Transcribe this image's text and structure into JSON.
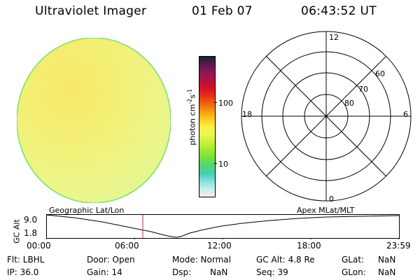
{
  "header": {
    "instrument": "Ultraviolet Imager",
    "date": "01 Feb 07",
    "time": "06:43:52 UT"
  },
  "colorbar": {
    "label": "photon cm",
    "label_sup1": "-2",
    "label_mid": "s",
    "label_sup2": "-1",
    "ticks": [
      "100",
      "10"
    ],
    "colors": [
      "#202030",
      "#5a1a4a",
      "#8a1a5a",
      "#b01040",
      "#d4102a",
      "#e83018",
      "#f06010",
      "#f89810",
      "#fcc820",
      "#fcf040",
      "#e8f850",
      "#c8f040",
      "#a0e830",
      "#78e040",
      "#50d870",
      "#40d0b0",
      "#80e0e0",
      "#c8ecec",
      "#f0f0f0"
    ]
  },
  "polar_plot": {
    "mlt_labels": [
      "12",
      "18",
      "6",
      "0"
    ],
    "lat_labels": [
      "60",
      "70",
      "80"
    ]
  },
  "timeline": {
    "left_label": "Geographic Lat/Lon",
    "right_label": "Apex  MLat/MLT",
    "axis_title": "GC Alt",
    "y_ticks": [
      "9.0",
      "1.8"
    ],
    "x_ticks": [
      "00:00",
      "06:00",
      "12:00",
      "18:00",
      "23:59"
    ]
  },
  "status": {
    "row1": [
      {
        "key": "flt",
        "text": "Flt: LBHL"
      },
      {
        "key": "door",
        "text": "Door: Open"
      },
      {
        "key": "mode",
        "text": "Mode: Normal"
      },
      {
        "key": "gcalt",
        "text": "GC Alt: 4.8 Re"
      },
      {
        "key": "glat_label",
        "text": "GLat:"
      },
      {
        "key": "glat_value",
        "text": "NaN"
      }
    ],
    "row2": [
      {
        "key": "ip",
        "text": "IP: 36.0"
      },
      {
        "key": "gain",
        "text": "Gain: 14"
      },
      {
        "key": "dsp_label",
        "text": "Dsp:"
      },
      {
        "key": "dsp_value",
        "text": "NaN"
      },
      {
        "key": "seq",
        "text": "Seq: 39"
      },
      {
        "key": "glon_label",
        "text": "GLon:"
      },
      {
        "key": "glon_value",
        "text": "NaN"
      }
    ]
  }
}
